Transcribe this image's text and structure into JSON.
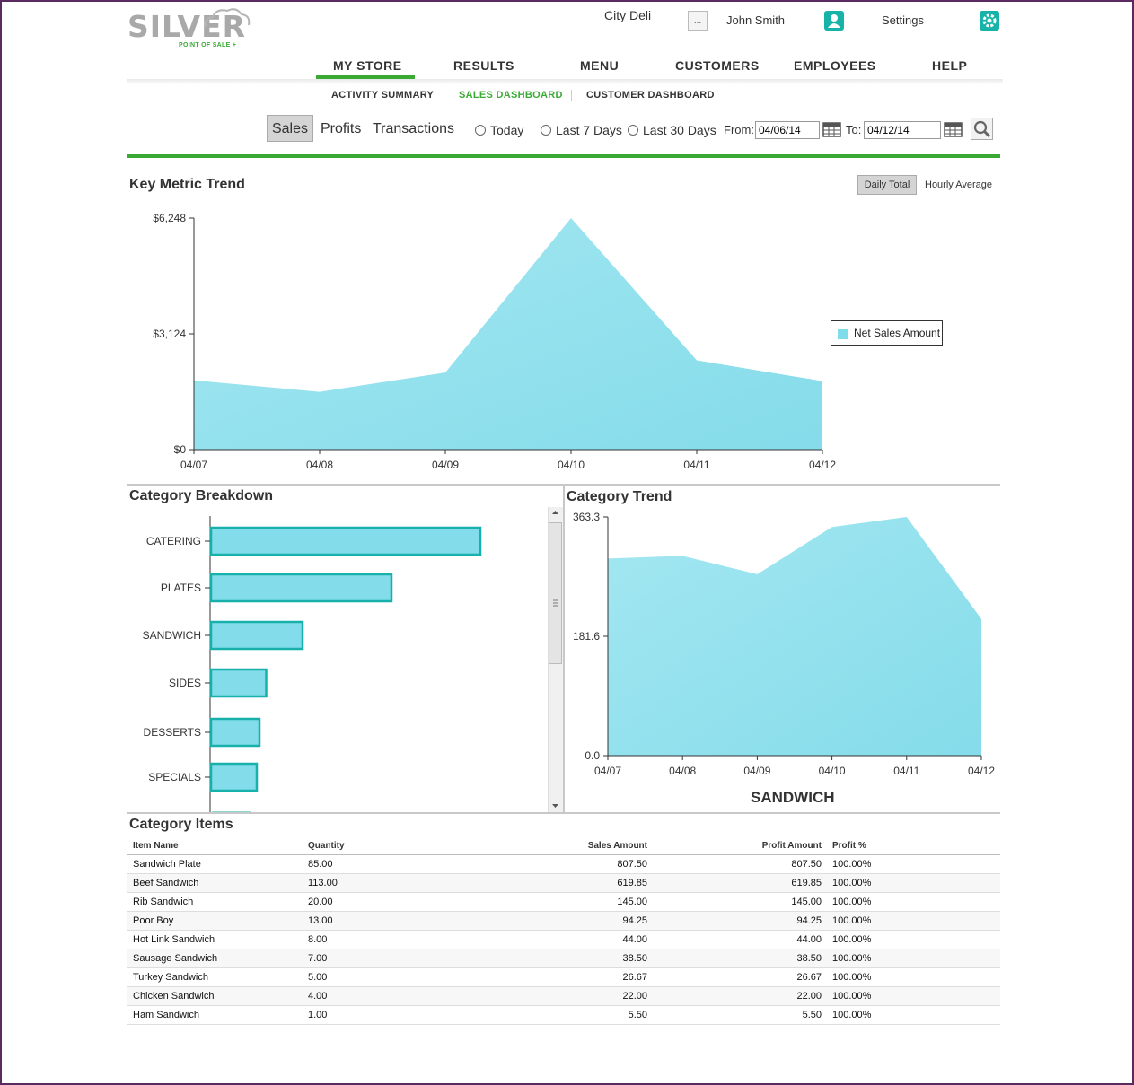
{
  "app": {
    "logo_text": "SILVER",
    "logo_sub": "POINT OF SALE +",
    "store_name": "City Deli",
    "more_button_label": "...",
    "user_name": "John Smith",
    "settings_label": "Settings"
  },
  "nav": {
    "items": [
      "MY STORE",
      "RESULTS",
      "MENU",
      "CUSTOMERS",
      "EMPLOYEES",
      "HELP"
    ],
    "active": "MY STORE"
  },
  "subnav": {
    "items": [
      "ACTIVITY SUMMARY",
      "SALES DASHBOARD",
      "CUSTOMER DASHBOARD"
    ],
    "active": "SALES DASHBOARD"
  },
  "filters": {
    "metric_tabs": [
      "Sales",
      "Profits",
      "Transactions"
    ],
    "active_metric": "Sales",
    "ranges": [
      "Today",
      "Last 7 Days",
      "Last 30 Days"
    ],
    "from_label": "From:",
    "from_value": "04/06/14",
    "to_label": "To:",
    "to_value": "04/12/14"
  },
  "key_metric": {
    "title": "Key Metric Trend",
    "toggle_active": "Daily Total",
    "toggle_other": "Hourly Average",
    "legend": "Net Sales Amount"
  },
  "category_breakdown": {
    "title": "Category Breakdown"
  },
  "category_trend": {
    "title": "Category Trend",
    "caption": "SANDWICH"
  },
  "category_items": {
    "title": "Category Items",
    "columns": [
      "Item Name",
      "Quantity",
      "Sales Amount",
      "Profit Amount",
      "Profit %"
    ],
    "rows": [
      [
        "Sandwich Plate",
        "85.00",
        "807.50",
        "807.50",
        "100.00%"
      ],
      [
        "Beef Sandwich",
        "113.00",
        "619.85",
        "619.85",
        "100.00%"
      ],
      [
        "Rib Sandwich",
        "20.00",
        "145.00",
        "145.00",
        "100.00%"
      ],
      [
        "Poor Boy",
        "13.00",
        "94.25",
        "94.25",
        "100.00%"
      ],
      [
        "Hot Link Sandwich",
        "8.00",
        "44.00",
        "44.00",
        "100.00%"
      ],
      [
        "Sausage Sandwich",
        "7.00",
        "38.50",
        "38.50",
        "100.00%"
      ],
      [
        "Turkey Sandwich",
        "5.00",
        "26.67",
        "26.67",
        "100.00%"
      ],
      [
        "Chicken Sandwich",
        "4.00",
        "22.00",
        "22.00",
        "100.00%"
      ],
      [
        "Ham Sandwich",
        "1.00",
        "5.50",
        "5.50",
        "100.00%"
      ]
    ]
  },
  "colors": {
    "accent_green": "#3aaa35",
    "teal": "#18b3a8",
    "area_fill": "#8fe0ec",
    "bar_fill": "#82dcea",
    "bar_stroke": "#17b0ab"
  },
  "chart_data": [
    {
      "type": "area",
      "title": "Key Metric Trend",
      "x": [
        "04/07",
        "04/08",
        "04/09",
        "04/10",
        "04/11",
        "04/12"
      ],
      "series": [
        {
          "name": "Net Sales Amount",
          "values": [
            1870,
            1560,
            2080,
            6248,
            2410,
            1850
          ]
        }
      ],
      "y_ticks": [
        "$0",
        "$3,124",
        "$6,248"
      ],
      "ylim": [
        0,
        6248
      ],
      "legend_position": "right"
    },
    {
      "type": "bar",
      "orientation": "horizontal",
      "title": "Category Breakdown",
      "categories": [
        "CATERING",
        "PLATES",
        "SANDWICH",
        "SIDES",
        "DESSERTS",
        "SPECIALS"
      ],
      "values": [
        1000,
        670,
        340,
        205,
        180,
        170
      ]
    },
    {
      "type": "area",
      "title": "Category Trend",
      "caption": "SANDWICH",
      "x": [
        "04/07",
        "04/08",
        "04/09",
        "04/10",
        "04/11",
        "04/12"
      ],
      "series": [
        {
          "values": [
            300,
            304,
            276,
            348,
            363.3,
            208
          ]
        }
      ],
      "y_ticks": [
        "0.0",
        "181.6",
        "363.3"
      ],
      "ylim": [
        0,
        363.3
      ]
    }
  ]
}
